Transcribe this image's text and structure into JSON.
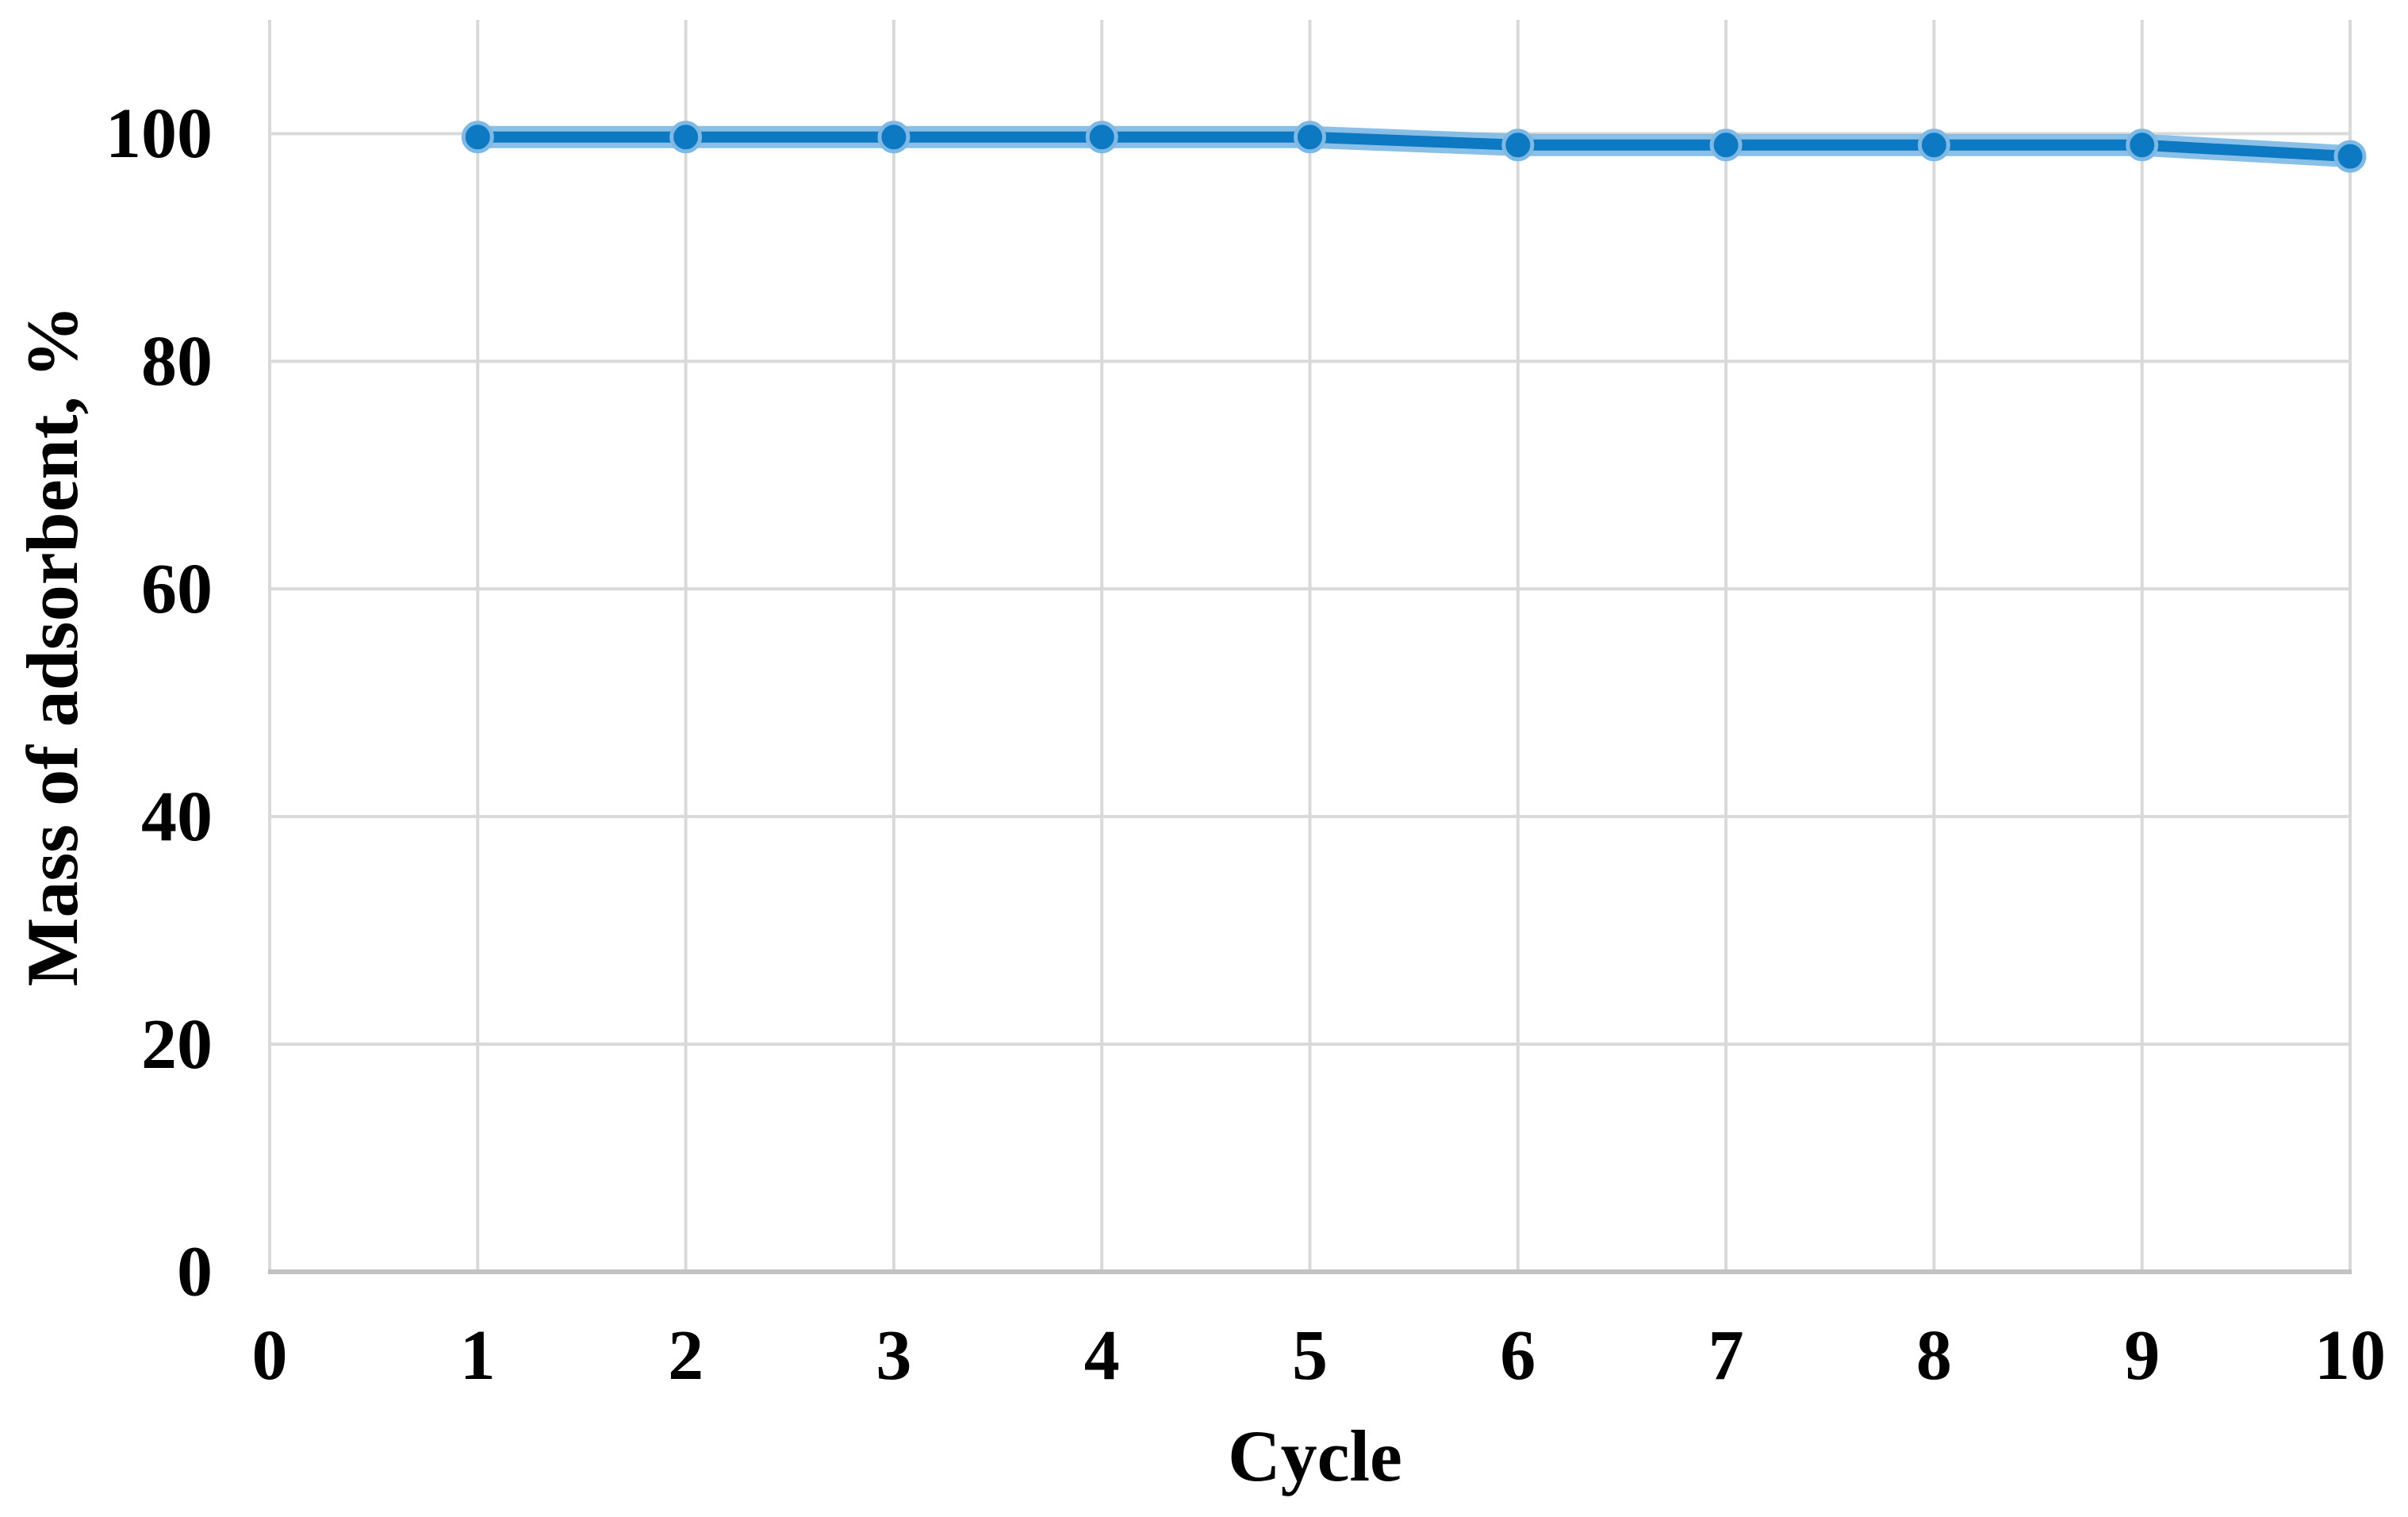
{
  "figure": {
    "background": "#ffffff"
  },
  "chart_data": {
    "type": "line",
    "xlabel": "Cycle",
    "ylabel": "Mass of adsorbent, %",
    "x": [
      1,
      2,
      3,
      4,
      5,
      6,
      7,
      8,
      9,
      10
    ],
    "values": [
      99.7,
      99.7,
      99.7,
      99.7,
      99.7,
      99,
      99,
      99,
      99,
      98
    ],
    "xlim": [
      0,
      10
    ],
    "ylim": [
      0,
      110
    ],
    "x_ticks": [
      0,
      1,
      2,
      3,
      4,
      5,
      6,
      7,
      8,
      9,
      10
    ],
    "y_ticks": [
      0,
      20,
      40,
      60,
      80,
      100
    ],
    "grid": true,
    "legend": false,
    "line_color": "#0d79c3",
    "line_halo_color": "#7db9e4",
    "marker": "circle",
    "marker_color": "#0d79c3",
    "gridline_color": "#d9d9d9",
    "axis_line_color": "#c2c2c2",
    "tick_label_color": "#000000"
  }
}
